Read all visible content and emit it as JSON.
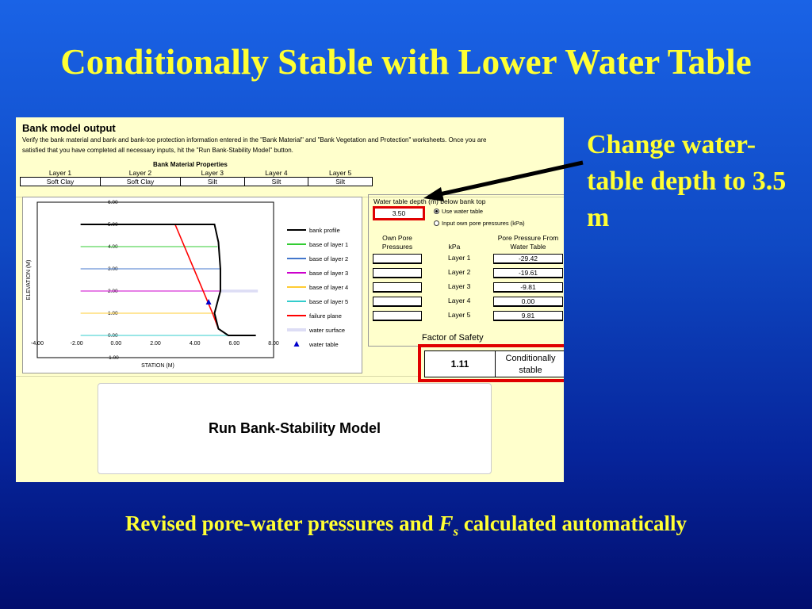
{
  "slide": {
    "title": "Conditionally Stable with Lower Water Table",
    "callout": "Change water-table depth to 3.5 m",
    "caption_pre": "Revised pore-water pressures and ",
    "caption_F": "F",
    "caption_s": "s",
    "caption_post": " calculated automatically"
  },
  "sheet": {
    "title": "Bank model output",
    "instructions": "Verify the bank material and bank and bank-toe protection information entered in the \"Bank Material\" and \"Bank Vegetation and Protection\" worksheets. Once you are satisfied that you have completed all necessary inputs, hit the \"Run Bank-Stability Model\" button.",
    "materials": {
      "title": "Bank Material Properties",
      "layers": [
        "Layer 1",
        "Layer 2",
        "Layer 3",
        "Layer 4",
        "Layer 5"
      ],
      "types": [
        "Soft Clay",
        "Soft Clay",
        "Silt",
        "Silt",
        "Silt"
      ]
    },
    "water_table": {
      "label": "Water table depth (m) below bank top",
      "value": "3.50",
      "radio_use": "Use water table",
      "radio_own": "Input own pore pressures (kPa)",
      "col_own": "Own Pore Pressures",
      "col_kpa": "kPa",
      "col_from": "Pore Pressure From Water Table",
      "rows": [
        {
          "layer": "Layer 1",
          "value": "-29.42"
        },
        {
          "layer": "Layer 2",
          "value": "-19.61"
        },
        {
          "layer": "Layer 3",
          "value": "-9.81"
        },
        {
          "layer": "Layer 4",
          "value": "0.00"
        },
        {
          "layer": "Layer 5",
          "value": "9.81"
        }
      ]
    },
    "fos": {
      "label": "Factor of Safety",
      "value": "1.11",
      "status": "Conditionally stable"
    },
    "run_button": "Run Bank-Stability Model"
  },
  "chart_data": {
    "type": "line",
    "xlabel": "STATION (M)",
    "ylabel": "ELEVATION (M)",
    "xlim": [
      -4,
      8
    ],
    "ylim": [
      -1,
      6
    ],
    "xticks": [
      "-4.00",
      "-2.00",
      "0.00",
      "2.00",
      "4.00",
      "6.00",
      "8.00"
    ],
    "yticks": [
      "-1.00",
      "0.00",
      "1.00",
      "2.00",
      "3.00",
      "4.00",
      "5.00",
      "6.00"
    ],
    "grid": false,
    "legend_position": "right",
    "series": [
      {
        "name": "bank profile",
        "color": "#000000",
        "x": [
          -1.8,
          5.0,
          5.2,
          5.3,
          5.3,
          5.0,
          5.2,
          5.7,
          7.1
        ],
        "y": [
          5.0,
          5.0,
          4.2,
          3.0,
          2.0,
          1.0,
          0.3,
          0.0,
          0.0
        ]
      },
      {
        "name": "base of layer 1",
        "color": "#33cc33",
        "x": [
          -1.8,
          5.15
        ],
        "y": [
          4.0,
          4.0
        ]
      },
      {
        "name": "base of layer 2",
        "color": "#4477cc",
        "x": [
          -1.8,
          5.3
        ],
        "y": [
          3.0,
          3.0
        ]
      },
      {
        "name": "base of layer 3",
        "color": "#cc00cc",
        "x": [
          -1.8,
          5.3
        ],
        "y": [
          2.0,
          2.0
        ]
      },
      {
        "name": "base of layer 4",
        "color": "#ffcc33",
        "x": [
          -1.8,
          5.0
        ],
        "y": [
          1.0,
          1.0
        ]
      },
      {
        "name": "base of layer 5",
        "color": "#33cccc",
        "x": [
          -1.8,
          5.7
        ],
        "y": [
          0.0,
          0.0
        ]
      },
      {
        "name": "failure plane",
        "color": "#ff0000",
        "x": [
          3.0,
          4.9,
          5.2
        ],
        "y": [
          5.0,
          1.0,
          0.3
        ]
      },
      {
        "name": "water surface",
        "color": "#ddddf5",
        "x": [
          5.3,
          7.2
        ],
        "y": [
          2.0,
          2.0
        ]
      },
      {
        "name": "water table",
        "color": "#0000cc",
        "marker": "triangle",
        "x": [
          4.7
        ],
        "y": [
          1.5
        ]
      }
    ]
  }
}
